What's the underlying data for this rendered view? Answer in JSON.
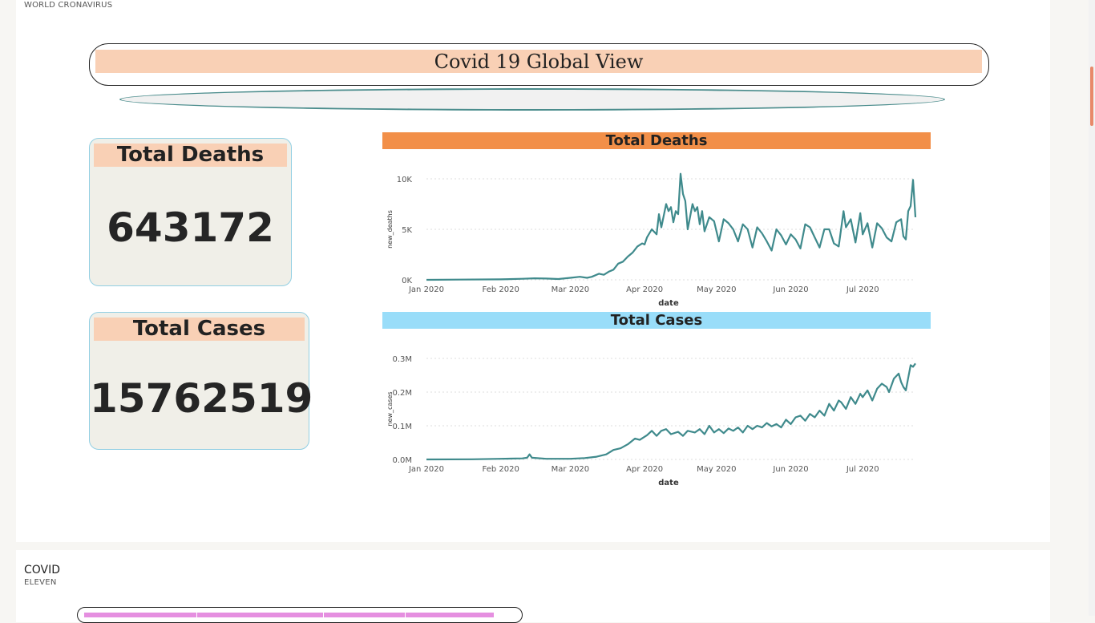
{
  "report": {
    "page_label": "WORLD CRONAVIRUS",
    "title": "Covid 19 Global View"
  },
  "kpis": {
    "deaths": {
      "label": "Total Deaths",
      "value": "643172"
    },
    "cases": {
      "label": "Total Cases",
      "value": "15762519"
    }
  },
  "colors": {
    "line": "#3f8a8c",
    "deaths_header": "#f28f48",
    "cases_header": "#99ddf9",
    "label_fill": "#f9d0b5",
    "kpi_fill": "#f0efe8"
  },
  "chart_data": [
    {
      "type": "line",
      "title": "Total Deaths",
      "xlabel": "date",
      "ylabel": "new_deaths",
      "x_ticks": [
        "Jan 2020",
        "Feb 2020",
        "Mar 2020",
        "Apr 2020",
        "May 2020",
        "Jun 2020",
        "Jul 2020"
      ],
      "y_ticks": [
        "0K",
        "5K",
        "10K"
      ],
      "ylim": [
        0,
        10000
      ],
      "xlim": [
        "2020-01-01",
        "2020-07-23"
      ],
      "grid": true,
      "points": [
        [
          "2020-01-01",
          0
        ],
        [
          "2020-01-15",
          20
        ],
        [
          "2020-02-01",
          50
        ],
        [
          "2020-02-10",
          100
        ],
        [
          "2020-02-15",
          150
        ],
        [
          "2020-02-20",
          130
        ],
        [
          "2020-02-25",
          80
        ],
        [
          "2020-03-01",
          200
        ],
        [
          "2020-03-05",
          300
        ],
        [
          "2020-03-08",
          200
        ],
        [
          "2020-03-10",
          300
        ],
        [
          "2020-03-13",
          600
        ],
        [
          "2020-03-15",
          500
        ],
        [
          "2020-03-17",
          800
        ],
        [
          "2020-03-19",
          1000
        ],
        [
          "2020-03-21",
          1600
        ],
        [
          "2020-03-23",
          1800
        ],
        [
          "2020-03-25",
          2300
        ],
        [
          "2020-03-27",
          2700
        ],
        [
          "2020-03-29",
          3300
        ],
        [
          "2020-03-31",
          3600
        ],
        [
          "2020-04-01",
          3500
        ],
        [
          "2020-04-02",
          4200
        ],
        [
          "2020-04-04",
          5000
        ],
        [
          "2020-04-06",
          4500
        ],
        [
          "2020-04-07",
          6500
        ],
        [
          "2020-04-08",
          5200
        ],
        [
          "2020-04-10",
          7500
        ],
        [
          "2020-04-11",
          6800
        ],
        [
          "2020-04-12",
          7200
        ],
        [
          "2020-04-13",
          5700
        ],
        [
          "2020-04-14",
          6800
        ],
        [
          "2020-04-15",
          6500
        ],
        [
          "2020-04-16",
          10500
        ],
        [
          "2020-04-17",
          8500
        ],
        [
          "2020-04-18",
          7800
        ],
        [
          "2020-04-19",
          5000
        ],
        [
          "2020-04-21",
          7500
        ],
        [
          "2020-04-22",
          6800
        ],
        [
          "2020-04-23",
          7200
        ],
        [
          "2020-04-24",
          5500
        ],
        [
          "2020-04-25",
          6800
        ],
        [
          "2020-04-26",
          4800
        ],
        [
          "2020-04-28",
          6200
        ],
        [
          "2020-04-30",
          5800
        ],
        [
          "2020-05-02",
          3800
        ],
        [
          "2020-05-04",
          6000
        ],
        [
          "2020-05-06",
          5600
        ],
        [
          "2020-05-08",
          5000
        ],
        [
          "2020-05-10",
          3800
        ],
        [
          "2020-05-12",
          5500
        ],
        [
          "2020-05-14",
          5000
        ],
        [
          "2020-05-16",
          3200
        ],
        [
          "2020-05-18",
          5200
        ],
        [
          "2020-05-20",
          4600
        ],
        [
          "2020-05-22",
          3800
        ],
        [
          "2020-05-24",
          2900
        ],
        [
          "2020-05-26",
          5000
        ],
        [
          "2020-05-28",
          4400
        ],
        [
          "2020-05-30",
          3500
        ],
        [
          "2020-06-01",
          4500
        ],
        [
          "2020-06-03",
          4000
        ],
        [
          "2020-06-05",
          3100
        ],
        [
          "2020-06-07",
          5500
        ],
        [
          "2020-06-09",
          5200
        ],
        [
          "2020-06-11",
          4200
        ],
        [
          "2020-06-13",
          3200
        ],
        [
          "2020-06-15",
          5000
        ],
        [
          "2020-06-17",
          5000
        ],
        [
          "2020-06-19",
          3600
        ],
        [
          "2020-06-21",
          3300
        ],
        [
          "2020-06-23",
          6800
        ],
        [
          "2020-06-24",
          5200
        ],
        [
          "2020-06-26",
          6000
        ],
        [
          "2020-06-28",
          3700
        ],
        [
          "2020-06-30",
          6600
        ],
        [
          "2020-07-01",
          4500
        ],
        [
          "2020-07-03",
          5600
        ],
        [
          "2020-07-05",
          3200
        ],
        [
          "2020-07-07",
          5600
        ],
        [
          "2020-07-09",
          5100
        ],
        [
          "2020-07-11",
          4200
        ],
        [
          "2020-07-13",
          3800
        ],
        [
          "2020-07-15",
          5700
        ],
        [
          "2020-07-17",
          6000
        ],
        [
          "2020-07-18",
          4300
        ],
        [
          "2020-07-19",
          4000
        ],
        [
          "2020-07-20",
          6800
        ],
        [
          "2020-07-21",
          7300
        ],
        [
          "2020-07-22",
          9900
        ],
        [
          "2020-07-23",
          6200
        ]
      ]
    },
    {
      "type": "line",
      "title": "Total Cases",
      "xlabel": "date",
      "ylabel": "new_cases",
      "x_ticks": [
        "Jan 2020",
        "Feb 2020",
        "Mar 2020",
        "Apr 2020",
        "May 2020",
        "Jun 2020",
        "Jul 2020"
      ],
      "y_ticks": [
        "0.0M",
        "0.1M",
        "0.2M",
        "0.3M"
      ],
      "ylim": [
        0,
        300000
      ],
      "xlim": [
        "2020-01-01",
        "2020-07-23"
      ],
      "grid": true,
      "points": [
        [
          "2020-01-01",
          0
        ],
        [
          "2020-01-20",
          500
        ],
        [
          "2020-02-01",
          2000
        ],
        [
          "2020-02-10",
          3000
        ],
        [
          "2020-02-12",
          5000
        ],
        [
          "2020-02-13",
          15000
        ],
        [
          "2020-02-14",
          5000
        ],
        [
          "2020-02-20",
          2000
        ],
        [
          "2020-03-01",
          2000
        ],
        [
          "2020-03-07",
          4000
        ],
        [
          "2020-03-12",
          8000
        ],
        [
          "2020-03-16",
          15000
        ],
        [
          "2020-03-19",
          28000
        ],
        [
          "2020-03-22",
          33000
        ],
        [
          "2020-03-25",
          45000
        ],
        [
          "2020-03-28",
          62000
        ],
        [
          "2020-03-30",
          58000
        ],
        [
          "2020-04-02",
          72000
        ],
        [
          "2020-04-04",
          85000
        ],
        [
          "2020-04-06",
          70000
        ],
        [
          "2020-04-08",
          85000
        ],
        [
          "2020-04-10",
          90000
        ],
        [
          "2020-04-12",
          75000
        ],
        [
          "2020-04-15",
          82000
        ],
        [
          "2020-04-17",
          70000
        ],
        [
          "2020-04-19",
          85000
        ],
        [
          "2020-04-22",
          80000
        ],
        [
          "2020-04-24",
          90000
        ],
        [
          "2020-04-26",
          75000
        ],
        [
          "2020-04-28",
          100000
        ],
        [
          "2020-04-30",
          80000
        ],
        [
          "2020-05-02",
          90000
        ],
        [
          "2020-05-04",
          78000
        ],
        [
          "2020-05-06",
          92000
        ],
        [
          "2020-05-08",
          85000
        ],
        [
          "2020-05-10",
          95000
        ],
        [
          "2020-05-12",
          80000
        ],
        [
          "2020-05-14",
          100000
        ],
        [
          "2020-05-16",
          90000
        ],
        [
          "2020-05-18",
          100000
        ],
        [
          "2020-05-20",
          95000
        ],
        [
          "2020-05-22",
          108000
        ],
        [
          "2020-05-24",
          98000
        ],
        [
          "2020-05-26",
          105000
        ],
        [
          "2020-05-28",
          95000
        ],
        [
          "2020-05-30",
          118000
        ],
        [
          "2020-06-01",
          105000
        ],
        [
          "2020-06-03",
          125000
        ],
        [
          "2020-06-05",
          130000
        ],
        [
          "2020-06-07",
          115000
        ],
        [
          "2020-06-09",
          135000
        ],
        [
          "2020-06-11",
          125000
        ],
        [
          "2020-06-13",
          145000
        ],
        [
          "2020-06-15",
          130000
        ],
        [
          "2020-06-17",
          165000
        ],
        [
          "2020-06-19",
          145000
        ],
        [
          "2020-06-21",
          175000
        ],
        [
          "2020-06-22",
          170000
        ],
        [
          "2020-06-24",
          150000
        ],
        [
          "2020-06-26",
          185000
        ],
        [
          "2020-06-28",
          165000
        ],
        [
          "2020-06-30",
          195000
        ],
        [
          "2020-07-01",
          185000
        ],
        [
          "2020-07-03",
          205000
        ],
        [
          "2020-07-05",
          175000
        ],
        [
          "2020-07-07",
          210000
        ],
        [
          "2020-07-09",
          225000
        ],
        [
          "2020-07-11",
          215000
        ],
        [
          "2020-07-12",
          200000
        ],
        [
          "2020-07-14",
          240000
        ],
        [
          "2020-07-16",
          255000
        ],
        [
          "2020-07-17",
          230000
        ],
        [
          "2020-07-18",
          215000
        ],
        [
          "2020-07-19",
          205000
        ],
        [
          "2020-07-21",
          280000
        ],
        [
          "2020-07-22",
          275000
        ],
        [
          "2020-07-23",
          285000
        ]
      ]
    }
  ],
  "second_page": {
    "title": "COVID",
    "subtitle": "ELEVEN"
  }
}
